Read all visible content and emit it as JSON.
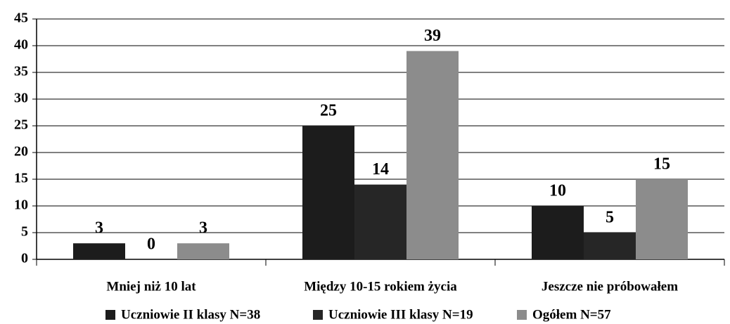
{
  "chart_data": {
    "type": "bar",
    "categories": [
      "Mniej niż 10 lat",
      "Między 10-15 rokiem życia",
      "Jeszcze nie próbowałem"
    ],
    "series": [
      {
        "name": "Uczniowie II klasy N=38",
        "color": "#1c1c1c",
        "values": [
          3,
          25,
          10
        ]
      },
      {
        "name": "Uczniowie III klasy N=19",
        "color": "#262626",
        "values": [
          0,
          14,
          5
        ]
      },
      {
        "name": "Ogółem N=57",
        "color": "#8c8c8c",
        "values": [
          3,
          39,
          15
        ]
      }
    ],
    "ylim": [
      0,
      45
    ],
    "yticks": [
      0,
      5,
      10,
      15,
      20,
      25,
      30,
      35,
      40,
      45
    ],
    "grid": true,
    "legend": "bottom"
  }
}
